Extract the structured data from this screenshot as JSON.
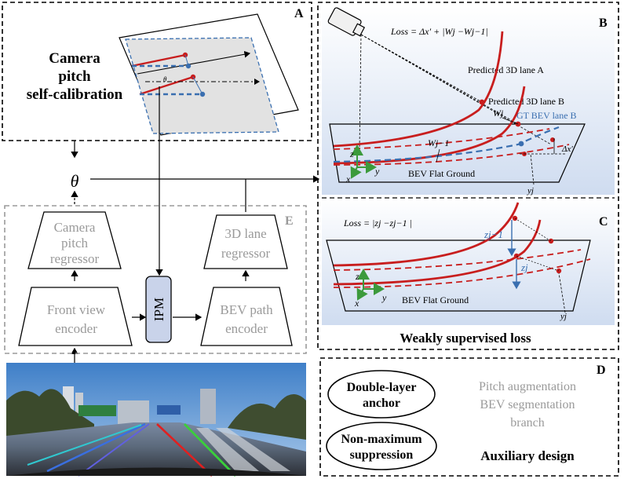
{
  "panel_a": {
    "letter": "A",
    "title_line1": "Camera",
    "title_line2": "pitch",
    "title_line3": "self-calibration",
    "theta_small": "θ"
  },
  "theta_label": "θ",
  "panel_e": {
    "letter": "E",
    "camera_regressor_line1": "Camera",
    "camera_regressor_line2": "pitch",
    "camera_regressor_line3": "regressor",
    "lane_regressor_line1": "3D lane",
    "lane_regressor_line2": "regressor",
    "front_encoder_line1": "Front view",
    "front_encoder_line2": "encoder",
    "ipm_label": "IPM",
    "bev_encoder_line1": "BEV path",
    "bev_encoder_line2": "encoder"
  },
  "panel_b": {
    "letter": "B",
    "loss": "Loss = Δx′ + |Wj −Wj−1|",
    "pred_a": "Predicted 3D lane A",
    "pred_b": "Predicted 3D lane B",
    "gt_b": "GT BEV lane B",
    "wj": "Wj",
    "wj1": "Wj−1",
    "dx": "Δx′",
    "ground": "BEV Flat Ground",
    "yj": "yj",
    "axis_z": "z",
    "axis_x": "x",
    "axis_y": "y"
  },
  "panel_c": {
    "letter": "C",
    "loss": "Loss = |zj −zj−1 |",
    "zj1": "zj−1",
    "zj": "zj",
    "ground": "BEV Flat Ground",
    "yj": "yj",
    "axis_z": "z",
    "axis_x": "x",
    "axis_y": "y"
  },
  "weak_label": "Weakly supervised loss",
  "panel_d": {
    "letter": "D",
    "anchor_line1": "Double-layer",
    "anchor_line2": "anchor",
    "nms_line1": "Non-maximum",
    "nms_line2": "suppression",
    "pitch_aug": "Pitch augmentation",
    "bev_seg_line1": "BEV segmentation",
    "bev_seg_line2": "branch",
    "aux_label": "Auxiliary design"
  },
  "colors": {
    "lane_red": "#c81e1e",
    "lane_blue": "#3a6fb0",
    "ipm_fill": "#c9d3ea",
    "axis_green": "#3c9a3c"
  }
}
